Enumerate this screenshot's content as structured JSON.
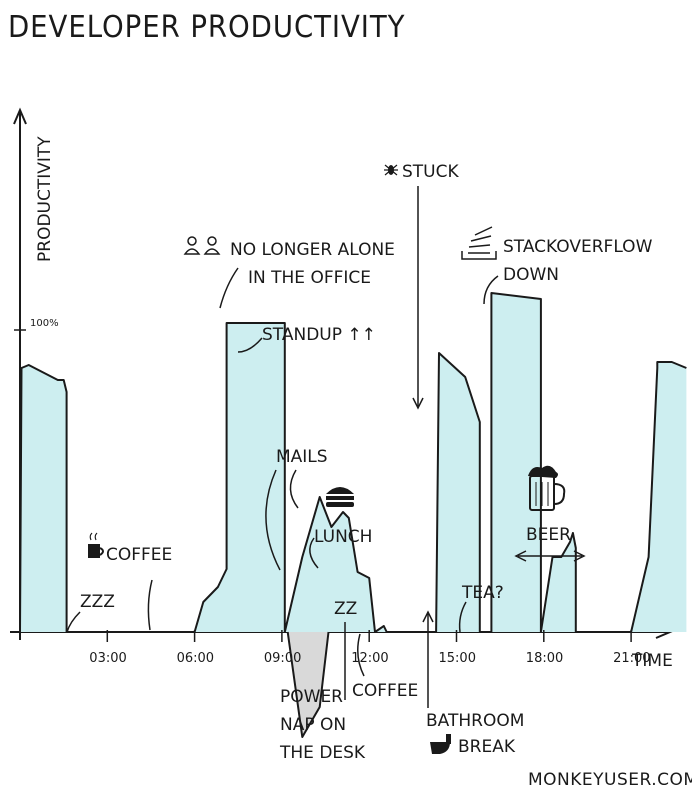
{
  "title": "DEVELOPER PRODUCTIVITY",
  "credit": "MONKEYUSER.COM",
  "colors": {
    "area": "#cdeef0",
    "negative": "#d9d9d9",
    "ink": "#1a1a1a"
  },
  "chart_data": {
    "type": "area",
    "title": "DEVELOPER PRODUCTIVITY",
    "xlabel": "TIME",
    "ylabel": "PRODUCTIVITY",
    "y_marker": "100%",
    "x_ticks": [
      {
        "t": 3,
        "label": "03:00"
      },
      {
        "t": 6,
        "label": "06:00"
      },
      {
        "t": 9,
        "label": "09:00"
      },
      {
        "t": 12,
        "label": "12:00"
      },
      {
        "t": 15,
        "label": "15:00"
      },
      {
        "t": 18,
        "label": "18:00"
      },
      {
        "t": 21,
        "label": "21:00"
      }
    ],
    "xlim": [
      0,
      23
    ],
    "ylim": [
      -40,
      120
    ],
    "series": [
      {
        "x": [
          0,
          0.05,
          0.3,
          1.3,
          1.5,
          1.6,
          1.6,
          3,
          6,
          6.3,
          6.8,
          7.1,
          7.1,
          9.1,
          9.1,
          9.7,
          10.3,
          10.7,
          11.1,
          11.3,
          11.6,
          12.0,
          12.2,
          12.5,
          12.6,
          12.8,
          13.2,
          14.3,
          14.4,
          15.3,
          15.8,
          15.8,
          16.2,
          16.2,
          17.9,
          17.9,
          18.3,
          18.6,
          18.9,
          19.0,
          19.1,
          19.1,
          21.0,
          21.6,
          21.9,
          21.9,
          22.4,
          22.9
        ],
        "y": [
          0,
          88,
          89,
          84,
          84,
          80,
          0,
          0,
          0,
          10,
          15,
          21,
          103,
          103,
          0,
          25,
          45,
          35,
          40,
          38,
          20,
          18,
          0,
          2,
          0,
          0,
          0,
          0,
          93,
          85,
          70,
          0,
          0,
          113,
          111,
          0,
          25,
          25,
          30,
          33,
          28,
          0,
          0,
          25,
          88,
          90,
          90,
          88
        ]
      },
      {
        "x": [
          9.2,
          9.7,
          10.3,
          10.6
        ],
        "y": [
          0,
          -35,
          -25,
          0
        ],
        "kind": "negative"
      }
    ],
    "annotations": [
      {
        "id": "zzz",
        "text": "ZZZ"
      },
      {
        "id": "coffee-morning",
        "text": "COFFEE"
      },
      {
        "id": "no-longer-alone",
        "text": "NO LONGER ALONE IN THE OFFICE"
      },
      {
        "id": "standup",
        "text": "STANDUP ↑↑"
      },
      {
        "id": "mails",
        "text": "MAILS"
      },
      {
        "id": "lunch",
        "text": "LUNCH"
      },
      {
        "id": "power-nap",
        "text": "POWER NAP ON THE DESK"
      },
      {
        "id": "coffee-afternoon",
        "text": "COFFEE"
      },
      {
        "id": "stuck",
        "text": "STUCK"
      },
      {
        "id": "stackoverflow-down",
        "text": "STACKOVERFLOW DOWN"
      },
      {
        "id": "bathroom-break",
        "text": "BATHROOM BREAK"
      },
      {
        "id": "tea",
        "text": "TEA?"
      },
      {
        "id": "beer",
        "text": "BEER"
      },
      {
        "id": "nap-zz",
        "text": "ZZ"
      }
    ]
  }
}
